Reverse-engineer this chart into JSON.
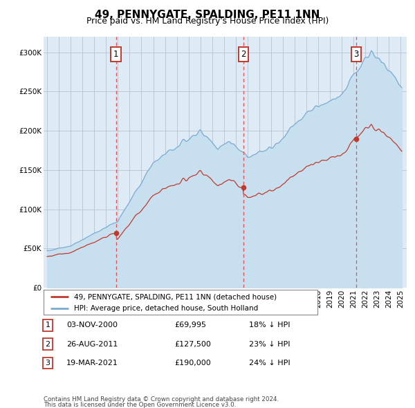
{
  "title": "49, PENNYGATE, SPALDING, PE11 1NN",
  "subtitle": "Price paid vs. HM Land Registry's House Price Index (HPI)",
  "legend_line1": "49, PENNYGATE, SPALDING, PE11 1NN (detached house)",
  "legend_line2": "HPI: Average price, detached house, South Holland",
  "footnote1": "Contains HM Land Registry data © Crown copyright and database right 2024.",
  "footnote2": "This data is licensed under the Open Government Licence v3.0.",
  "transactions": [
    {
      "num": 1,
      "date": "03-NOV-2000",
      "price": 69995,
      "pct": "18%",
      "dir": "↓",
      "x_year": 2000.84
    },
    {
      "num": 2,
      "date": "26-AUG-2011",
      "price": 127500,
      "pct": "23%",
      "dir": "↓",
      "x_year": 2011.65
    },
    {
      "num": 3,
      "date": "19-MAR-2021",
      "price": 190000,
      "pct": "24%",
      "dir": "↓",
      "x_year": 2021.21
    }
  ],
  "hpi_color": "#7aabcf",
  "hpi_fill_color": "#c8dff0",
  "price_color": "#c0392b",
  "dashed_line_color": "#e05050",
  "marker_color": "#c0392b",
  "background_color": "#deeaf5",
  "ylim": [
    0,
    320000
  ],
  "xlim": [
    1994.7,
    2025.5
  ],
  "yticks": [
    0,
    50000,
    100000,
    150000,
    200000,
    250000,
    300000
  ]
}
